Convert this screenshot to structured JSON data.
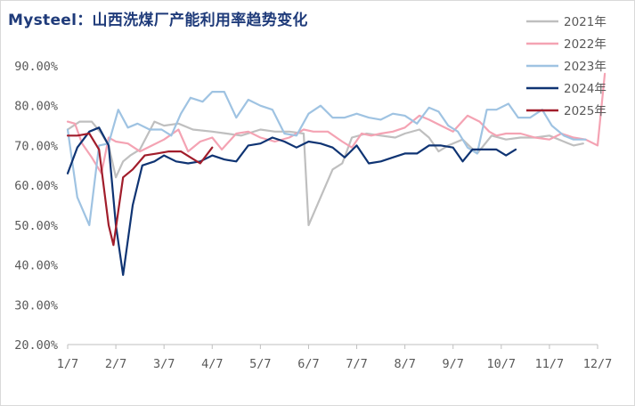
{
  "chart_data": {
    "type": "line",
    "title": "Mysteel：山西洗煤厂产能利用率趋势变化",
    "xlabel": "",
    "ylabel": "",
    "x_tick_labels": [
      "1/7",
      "2/7",
      "3/7",
      "4/7",
      "5/7",
      "6/7",
      "7/7",
      "8/7",
      "9/7",
      "10/7",
      "11/7",
      "12/7"
    ],
    "y_tick_labels": [
      "20.00%",
      "30.00%",
      "40.00%",
      "50.00%",
      "60.00%",
      "70.00%",
      "80.00%",
      "90.00%"
    ],
    "y_ticks": [
      20,
      30,
      40,
      50,
      60,
      70,
      80,
      90
    ],
    "ylim": [
      20,
      90
    ],
    "xlim": [
      0,
      11
    ],
    "grid": false,
    "legend_position": "top-right",
    "series": [
      {
        "name": "2021年",
        "color": "#bfbfbf",
        "points": [
          [
            0.0,
            74
          ],
          [
            0.25,
            76
          ],
          [
            0.5,
            76
          ],
          [
            0.7,
            73
          ],
          [
            0.85,
            70
          ],
          [
            1.0,
            62
          ],
          [
            1.15,
            66
          ],
          [
            1.3,
            67.5
          ],
          [
            1.5,
            69
          ],
          [
            1.8,
            76
          ],
          [
            2.0,
            75
          ],
          [
            2.3,
            75.5
          ],
          [
            2.6,
            74
          ],
          [
            3.0,
            73.5
          ],
          [
            3.3,
            73
          ],
          [
            3.6,
            72.5
          ],
          [
            4.0,
            74
          ],
          [
            4.3,
            73.5
          ],
          [
            4.6,
            73.5
          ],
          [
            4.9,
            73
          ],
          [
            5.0,
            50
          ],
          [
            5.25,
            57
          ],
          [
            5.5,
            64
          ],
          [
            5.7,
            65.5
          ],
          [
            5.9,
            72
          ],
          [
            6.2,
            73
          ],
          [
            6.5,
            72.5
          ],
          [
            6.8,
            72
          ],
          [
            7.0,
            73
          ],
          [
            7.3,
            74
          ],
          [
            7.5,
            72
          ],
          [
            7.7,
            68.5
          ],
          [
            7.9,
            70
          ],
          [
            8.2,
            71.5
          ],
          [
            8.5,
            68
          ],
          [
            8.8,
            72.5
          ],
          [
            9.1,
            71.5
          ],
          [
            9.4,
            72
          ],
          [
            9.7,
            72
          ],
          [
            10.0,
            72.5
          ],
          [
            10.3,
            71
          ],
          [
            10.5,
            70
          ],
          [
            10.7,
            70.5
          ]
        ]
      },
      {
        "name": "2022年",
        "color": "#f4a3b3",
        "points": [
          [
            0.0,
            76
          ],
          [
            0.15,
            75.5
          ],
          [
            0.3,
            70.5
          ],
          [
            0.5,
            67
          ],
          [
            0.7,
            63
          ],
          [
            0.85,
            72
          ],
          [
            1.0,
            71
          ],
          [
            1.25,
            70.5
          ],
          [
            1.5,
            68.5
          ],
          [
            1.75,
            70
          ],
          [
            2.0,
            71.5
          ],
          [
            2.3,
            74
          ],
          [
            2.5,
            68.5
          ],
          [
            2.75,
            71
          ],
          [
            3.0,
            72
          ],
          [
            3.2,
            69
          ],
          [
            3.5,
            73
          ],
          [
            3.75,
            73.5
          ],
          [
            4.0,
            72
          ],
          [
            4.3,
            71
          ],
          [
            4.6,
            72
          ],
          [
            4.9,
            74
          ],
          [
            5.1,
            73.5
          ],
          [
            5.4,
            73.5
          ],
          [
            5.7,
            71
          ],
          [
            5.9,
            69.5
          ],
          [
            6.1,
            73
          ],
          [
            6.3,
            72.5
          ],
          [
            6.5,
            73
          ],
          [
            6.75,
            73.5
          ],
          [
            7.0,
            74.5
          ],
          [
            7.3,
            77.5
          ],
          [
            7.5,
            76.5
          ],
          [
            7.75,
            75
          ],
          [
            8.0,
            73.5
          ],
          [
            8.3,
            77.5
          ],
          [
            8.55,
            76
          ],
          [
            8.75,
            73.5
          ],
          [
            8.9,
            72.5
          ],
          [
            9.1,
            73
          ],
          [
            9.4,
            73
          ],
          [
            9.7,
            72
          ],
          [
            10.0,
            71.5
          ],
          [
            10.25,
            73
          ],
          [
            10.5,
            72
          ],
          [
            10.75,
            71.5
          ],
          [
            11.0,
            70
          ],
          [
            11.15,
            88
          ]
        ]
      },
      {
        "name": "2023年",
        "color": "#9fc3e2",
        "points": [
          [
            0.0,
            74
          ],
          [
            0.2,
            57
          ],
          [
            0.45,
            50
          ],
          [
            0.65,
            70
          ],
          [
            0.85,
            70.5
          ],
          [
            1.05,
            79
          ],
          [
            1.25,
            74.5
          ],
          [
            1.45,
            75.5
          ],
          [
            1.7,
            74
          ],
          [
            1.95,
            74
          ],
          [
            2.15,
            72.5
          ],
          [
            2.35,
            78
          ],
          [
            2.55,
            82
          ],
          [
            2.8,
            81
          ],
          [
            3.0,
            83.5
          ],
          [
            3.25,
            83.5
          ],
          [
            3.5,
            77
          ],
          [
            3.75,
            81.5
          ],
          [
            4.0,
            80
          ],
          [
            4.25,
            79
          ],
          [
            4.5,
            73
          ],
          [
            4.75,
            72.5
          ],
          [
            5.0,
            78
          ],
          [
            5.25,
            80
          ],
          [
            5.5,
            77
          ],
          [
            5.75,
            77
          ],
          [
            6.0,
            78
          ],
          [
            6.25,
            77
          ],
          [
            6.5,
            76.5
          ],
          [
            6.75,
            78
          ],
          [
            7.0,
            77.5
          ],
          [
            7.25,
            75.5
          ],
          [
            7.5,
            79.5
          ],
          [
            7.7,
            78.5
          ],
          [
            7.9,
            75
          ],
          [
            8.1,
            73.5
          ],
          [
            8.3,
            69.5
          ],
          [
            8.5,
            68
          ],
          [
            8.7,
            79
          ],
          [
            8.9,
            79
          ],
          [
            9.15,
            80.5
          ],
          [
            9.35,
            77
          ],
          [
            9.6,
            77
          ],
          [
            9.85,
            79
          ],
          [
            10.05,
            75
          ],
          [
            10.3,
            72.5
          ],
          [
            10.5,
            71.5
          ],
          [
            10.75,
            71.5
          ]
        ]
      },
      {
        "name": "2024年",
        "color": "#0f3473",
        "points": [
          [
            0.0,
            63
          ],
          [
            0.2,
            69.5
          ],
          [
            0.45,
            73.5
          ],
          [
            0.65,
            74.5
          ],
          [
            0.85,
            70
          ],
          [
            1.0,
            50
          ],
          [
            1.15,
            37.5
          ],
          [
            1.35,
            55
          ],
          [
            1.55,
            65
          ],
          [
            1.8,
            66
          ],
          [
            2.0,
            67.5
          ],
          [
            2.25,
            66
          ],
          [
            2.5,
            65.5
          ],
          [
            2.75,
            66
          ],
          [
            3.0,
            67.5
          ],
          [
            3.25,
            66.5
          ],
          [
            3.5,
            66
          ],
          [
            3.75,
            70
          ],
          [
            4.0,
            70.5
          ],
          [
            4.25,
            72
          ],
          [
            4.5,
            71
          ],
          [
            4.75,
            69.5
          ],
          [
            5.0,
            71
          ],
          [
            5.25,
            70.5
          ],
          [
            5.5,
            69.5
          ],
          [
            5.75,
            67
          ],
          [
            6.0,
            70
          ],
          [
            6.25,
            65.5
          ],
          [
            6.5,
            66
          ],
          [
            6.75,
            67
          ],
          [
            7.0,
            68
          ],
          [
            7.25,
            68
          ],
          [
            7.5,
            70
          ],
          [
            7.75,
            70
          ],
          [
            8.0,
            69.5
          ],
          [
            8.2,
            66
          ],
          [
            8.4,
            69
          ],
          [
            8.65,
            69
          ],
          [
            8.9,
            69
          ],
          [
            9.1,
            67.5
          ],
          [
            9.3,
            69
          ]
        ]
      },
      {
        "name": "2025年",
        "color": "#a11d2b",
        "points": [
          [
            0.0,
            72.5
          ],
          [
            0.2,
            72.5
          ],
          [
            0.45,
            73
          ],
          [
            0.65,
            69
          ],
          [
            0.85,
            50
          ],
          [
            0.95,
            45
          ],
          [
            1.15,
            62
          ],
          [
            1.35,
            64
          ],
          [
            1.6,
            67.5
          ],
          [
            1.85,
            68
          ],
          [
            2.1,
            68.5
          ],
          [
            2.35,
            68.5
          ],
          [
            2.55,
            67
          ],
          [
            2.75,
            65.5
          ],
          [
            3.0,
            69.5
          ]
        ]
      }
    ]
  }
}
